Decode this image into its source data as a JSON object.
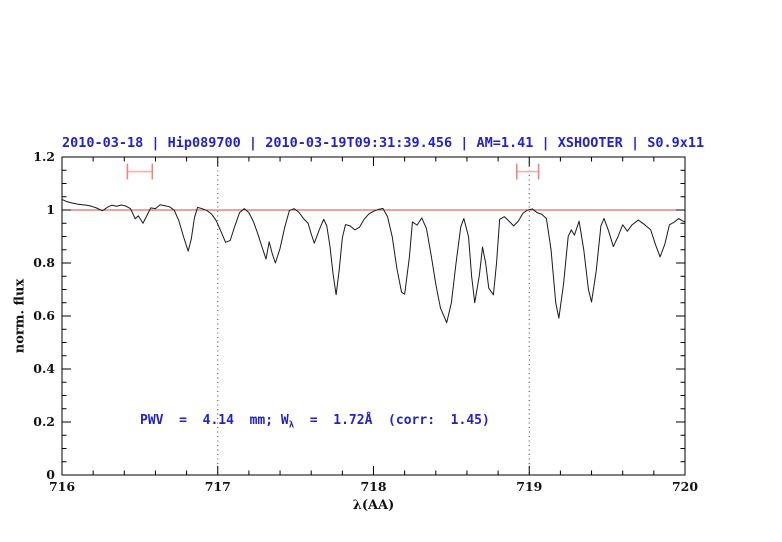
{
  "header": {
    "title": "2010-03-18 | Hip089700 | 2010-03-19T09:31:39.456 | AM=1.41 | XSHOOTER | S0.9x11"
  },
  "annotation": {
    "part1": "PWV  =  4.14  mm; W",
    "sub": "λ",
    "part2": "  =  1.72Å  (corr:  1.45)"
  },
  "chart_data": {
    "type": "line",
    "title": "2010-03-18 | Hip089700 | 2010-03-19T09:31:39.456 | AM=1.41 | XSHOOTER | S0.9x11",
    "xlabel": "λ(AA)",
    "ylabel": "norm. flux",
    "xlim": [
      716,
      720
    ],
    "ylim": [
      0,
      1.2
    ],
    "grid": false,
    "x_ticks": {
      "major": [
        716,
        717,
        718,
        719,
        720
      ],
      "labels": [
        "716",
        "717",
        "718",
        "719",
        "720"
      ],
      "minor_step": 0.2
    },
    "y_ticks": {
      "major": [
        0,
        0.2,
        0.4,
        0.6,
        0.8,
        1.0,
        1.2
      ],
      "labels": [
        "0",
        "0.2",
        "0.4",
        "0.6",
        "0.8",
        "1",
        "1.2"
      ],
      "minor_step": 0.05
    },
    "guide_lines_x": [
      717,
      719
    ],
    "continuum_y": 1.0,
    "range_markers": [
      {
        "x_min": 716.42,
        "x_max": 716.58,
        "y": 1.145,
        "cap_half_height": 0.03
      },
      {
        "x_min": 718.92,
        "x_max": 719.06,
        "y": 1.145,
        "cap_half_height": 0.03
      }
    ],
    "colors": {
      "continuum": "#e04040",
      "marker_bar": "#f5b0b0",
      "marker_cap": "#ee8585",
      "guide": "#404040",
      "spectrum": "#1a1a1a",
      "title_blue": "#2222cc"
    },
    "series": [
      {
        "name": "telluric-spectrum",
        "x": [
          716.0,
          716.03,
          716.06,
          716.1,
          716.13,
          716.16,
          716.19,
          716.22,
          716.26,
          716.29,
          716.32,
          716.35,
          716.38,
          716.41,
          716.44,
          716.47,
          716.49,
          716.52,
          716.55,
          716.57,
          716.6,
          716.63,
          716.66,
          716.69,
          716.72,
          716.75,
          716.78,
          716.81,
          716.83,
          716.85,
          716.87,
          716.9,
          716.93,
          716.96,
          716.99,
          717.02,
          717.05,
          717.08,
          717.11,
          717.14,
          717.17,
          717.2,
          717.23,
          717.26,
          717.29,
          717.31,
          717.33,
          717.35,
          717.37,
          717.4,
          717.43,
          717.46,
          717.49,
          717.52,
          717.55,
          717.58,
          717.6,
          717.62,
          717.65,
          717.68,
          717.7,
          717.72,
          717.74,
          717.76,
          717.78,
          717.8,
          717.82,
          717.85,
          717.88,
          717.91,
          717.94,
          717.97,
          718.0,
          718.03,
          718.06,
          718.09,
          718.12,
          718.15,
          718.18,
          718.2,
          718.23,
          718.25,
          718.28,
          718.31,
          718.34,
          718.37,
          718.4,
          718.43,
          718.47,
          718.5,
          718.53,
          718.56,
          718.58,
          718.61,
          718.63,
          718.65,
          718.68,
          718.7,
          718.72,
          718.74,
          718.77,
          718.79,
          718.81,
          718.84,
          718.87,
          718.9,
          718.93,
          718.96,
          718.99,
          719.02,
          719.05,
          719.08,
          719.11,
          719.14,
          719.17,
          719.19,
          719.22,
          719.25,
          719.27,
          719.29,
          719.32,
          719.35,
          719.38,
          719.4,
          719.43,
          719.46,
          719.48,
          719.51,
          719.54,
          719.57,
          719.6,
          719.63,
          719.66,
          719.7,
          719.74,
          719.78,
          719.81,
          719.84,
          719.87,
          719.9,
          719.93,
          719.96,
          719.98,
          720.0
        ],
        "y": [
          1.04,
          1.032,
          1.027,
          1.022,
          1.02,
          1.018,
          1.014,
          1.008,
          0.997,
          1.01,
          1.018,
          1.014,
          1.019,
          1.015,
          1.005,
          0.967,
          0.978,
          0.95,
          0.985,
          1.008,
          1.005,
          1.02,
          1.016,
          1.012,
          1.0,
          0.96,
          0.9,
          0.845,
          0.89,
          0.97,
          1.01,
          1.005,
          0.998,
          0.985,
          0.96,
          0.92,
          0.878,
          0.885,
          0.94,
          0.99,
          1.005,
          0.99,
          0.955,
          0.905,
          0.85,
          0.815,
          0.88,
          0.835,
          0.8,
          0.855,
          0.935,
          0.998,
          1.005,
          0.992,
          0.968,
          0.95,
          0.91,
          0.875,
          0.923,
          0.965,
          0.94,
          0.865,
          0.76,
          0.68,
          0.775,
          0.895,
          0.945,
          0.94,
          0.925,
          0.935,
          0.965,
          0.985,
          0.995,
          1.002,
          1.006,
          0.975,
          0.9,
          0.78,
          0.69,
          0.682,
          0.82,
          0.955,
          0.943,
          0.97,
          0.93,
          0.83,
          0.72,
          0.63,
          0.575,
          0.65,
          0.8,
          0.935,
          0.968,
          0.9,
          0.75,
          0.65,
          0.755,
          0.86,
          0.8,
          0.705,
          0.68,
          0.8,
          0.965,
          0.975,
          0.958,
          0.94,
          0.958,
          0.988,
          1.0,
          1.004,
          0.99,
          0.984,
          0.968,
          0.85,
          0.65,
          0.592,
          0.72,
          0.9,
          0.925,
          0.905,
          0.958,
          0.85,
          0.7,
          0.653,
          0.77,
          0.94,
          0.968,
          0.92,
          0.862,
          0.9,
          0.944,
          0.92,
          0.944,
          0.962,
          0.945,
          0.925,
          0.87,
          0.823,
          0.87,
          0.944,
          0.954,
          0.968,
          0.96,
          0.955
        ]
      }
    ],
    "annotation_text": "PWV = 4.14 mm; W_λ = 1.72Å (corr: 1.45)"
  }
}
